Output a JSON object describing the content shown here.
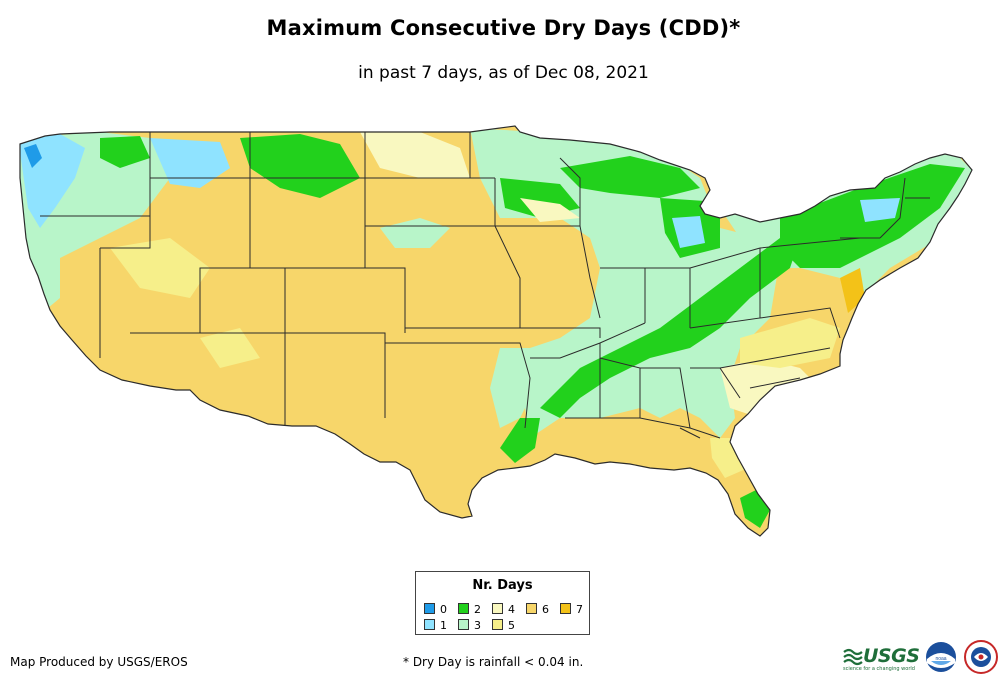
{
  "header": {
    "title": "Maximum Consecutive Dry Days (CDD)*",
    "subtitle": "in past 7 days, as of Dec 08, 2021"
  },
  "legend": {
    "title": "Nr. Days",
    "items": [
      {
        "label": "0",
        "color": "#1f9be8"
      },
      {
        "label": "1",
        "color": "#8fe3ff"
      },
      {
        "label": "2",
        "color": "#22d11c"
      },
      {
        "label": "3",
        "color": "#b8f5c9"
      },
      {
        "label": "4",
        "color": "#f9f8c0"
      },
      {
        "label": "5",
        "color": "#f6ef8a"
      },
      {
        "label": "6",
        "color": "#f7d66a"
      },
      {
        "label": "7",
        "color": "#f3c218"
      }
    ]
  },
  "footer": {
    "credit": "Map Produced by USGS/EROS",
    "note": "* Dry Day is rainfall < 0.04 in."
  },
  "logos": {
    "usgs": "USGS",
    "usgs_tagline": "science for a changing world",
    "noaa": "noaa",
    "nws": "NATIONAL WEATHER SERVICE"
  },
  "colors": {
    "state_border": "#2b2b2b",
    "usgs_green": "#1f6e3a",
    "noaa_blue": "#1b4f9c"
  }
}
